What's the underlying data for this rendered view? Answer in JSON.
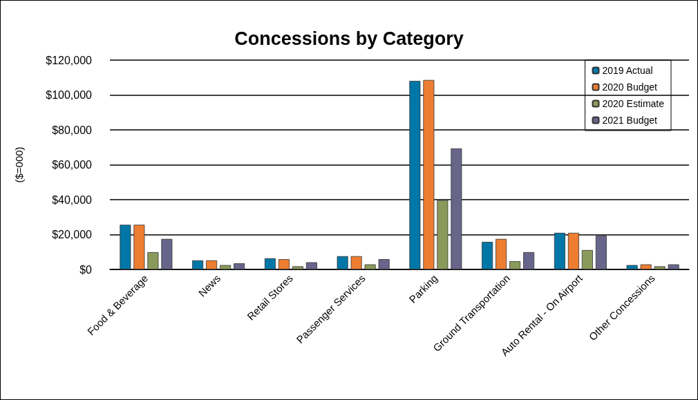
{
  "chart_data": {
    "type": "bar",
    "title": "Concessions by Category",
    "ylabel": "($=000)",
    "categories": [
      "Food & Beverage",
      "News",
      "Retail Stores",
      "Passenger Services",
      "Parking",
      "Ground Transportation",
      "Auto Rental - On Airport",
      "Other Concessions"
    ],
    "series": [
      {
        "name": "2019 Actual",
        "color": "#0077a6",
        "values": [
          25600,
          5200,
          6400,
          7600,
          108100,
          15800,
          21000,
          2500
        ]
      },
      {
        "name": "2020 Budget",
        "color": "#ed7d31",
        "values": [
          25600,
          5200,
          5900,
          7600,
          108600,
          17500,
          21000,
          2900
        ]
      },
      {
        "name": "2020 Estimate",
        "color": "#8a9a5b",
        "values": [
          9900,
          2500,
          1800,
          2900,
          39700,
          4700,
          11100,
          1800
        ]
      },
      {
        "name": "2021 Budget",
        "color": "#67658a",
        "values": [
          17500,
          3500,
          4100,
          5900,
          69400,
          9900,
          19500,
          2900
        ]
      }
    ],
    "ylim": [
      0,
      120000
    ],
    "yticks": [
      {
        "value": 0,
        "label": "$0"
      },
      {
        "value": 20000,
        "label": "$20,000"
      },
      {
        "value": 40000,
        "label": "$40,000"
      },
      {
        "value": 60000,
        "label": "$60,000"
      },
      {
        "value": 80000,
        "label": "$80,000"
      },
      {
        "value": 100000,
        "label": "$100,000"
      },
      {
        "value": 120000,
        "label": "$120,000"
      }
    ],
    "grid": "y",
    "legend": "top right"
  }
}
